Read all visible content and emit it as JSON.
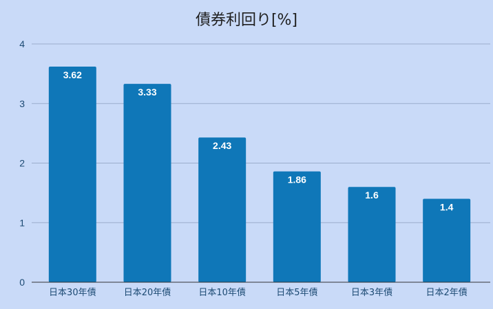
{
  "chart_data": {
    "type": "bar",
    "title": "債券利回り[%]",
    "xlabel": "",
    "ylabel": "",
    "categories": [
      "日本30年債",
      "日本20年債",
      "日本10年債",
      "日本5年債",
      "日本3年債",
      "日本2年債"
    ],
    "values": [
      3.62,
      3.33,
      2.43,
      1.86,
      1.6,
      1.4
    ],
    "data_labels": [
      "3.62",
      "3.33",
      "2.43",
      "1.86",
      "1.6",
      "1.4"
    ],
    "ylim": [
      0,
      4
    ],
    "yticks": [
      "0",
      "1",
      "2",
      "3",
      "4"
    ],
    "grid": true,
    "legend": "none",
    "colors": {
      "background": "#c9daf8",
      "bar": "#0f77b8",
      "grid": "#9aaccc",
      "axis": "#333333",
      "tick_text": "#1c4a73",
      "title_text": "#1f1f1f",
      "data_label_text": "#ffffff"
    }
  }
}
